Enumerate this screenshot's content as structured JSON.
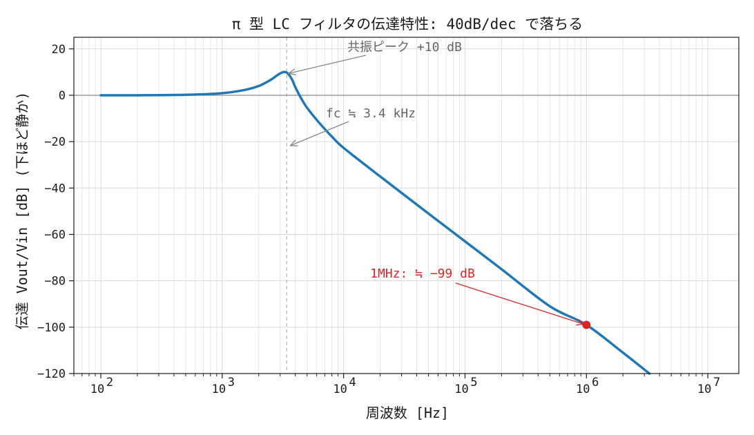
{
  "chart_data": {
    "type": "line",
    "title": "π 型 LC フィルタの伝達特性: 40dB/dec で落ちる",
    "xlabel": "周波数 [Hz]",
    "ylabel": "伝達 Vout/Vin [dB] (下ほど静か)",
    "x_scale": "log",
    "xlim": [
      60,
      18000000
    ],
    "ylim": [
      -120,
      25
    ],
    "x_ticks": [
      100,
      1000,
      10000,
      100000,
      1000000,
      10000000
    ],
    "x_tick_labels": [
      [
        "10",
        "2"
      ],
      [
        "10",
        "3"
      ],
      [
        "10",
        "4"
      ],
      [
        "10",
        "5"
      ],
      [
        "10",
        "6"
      ],
      [
        "10",
        "7"
      ]
    ],
    "y_ticks": [
      20,
      0,
      -20,
      -40,
      -60,
      -80,
      -100,
      -120
    ],
    "y_tick_labels": [
      "20",
      "0",
      "−20",
      "−40",
      "−60",
      "−80",
      "−100",
      "−120"
    ],
    "grid": true,
    "series": [
      {
        "color": "#1f77b4",
        "x": [
          100,
          200,
          500,
          1000,
          1500,
          2000,
          2500,
          2800,
          3000,
          3200,
          3400,
          3600,
          3800,
          4000,
          4500,
          5000,
          6000,
          7000,
          8000,
          10000,
          20000,
          50000,
          100000,
          200000,
          500000,
          1000000,
          2000000,
          3300000
        ],
        "y": [
          0.0,
          0.0,
          0.2,
          0.9,
          2.2,
          4.0,
          6.6,
          8.4,
          9.4,
          10.0,
          9.8,
          8.4,
          6.3,
          3.5,
          -1.6,
          -5.4,
          -10.6,
          -14.6,
          -17.8,
          -22.7,
          -35.0,
          -51.0,
          -63.0,
          -75.0,
          -91.0,
          -99.0,
          -111.0,
          -120.0
        ]
      }
    ],
    "vline": {
      "x": 3400,
      "style": "dashed",
      "color": "#bbbbbb"
    },
    "hline": {
      "y": 0,
      "color": "#888888"
    },
    "annotations": [
      {
        "text": "共振ピーク +10 dB",
        "x": 3300,
        "y": 10,
        "color": "#777777"
      },
      {
        "text": "fc ≒ 3.4 kHz",
        "x": 3500,
        "y": -22,
        "color": "#777777"
      },
      {
        "text": "1MHz: ≒ −99 dB",
        "x": 1000000,
        "y": -99,
        "color": "#d62728"
      }
    ],
    "marker": {
      "x": 1000000,
      "y": -99,
      "color": "#d62728"
    }
  }
}
